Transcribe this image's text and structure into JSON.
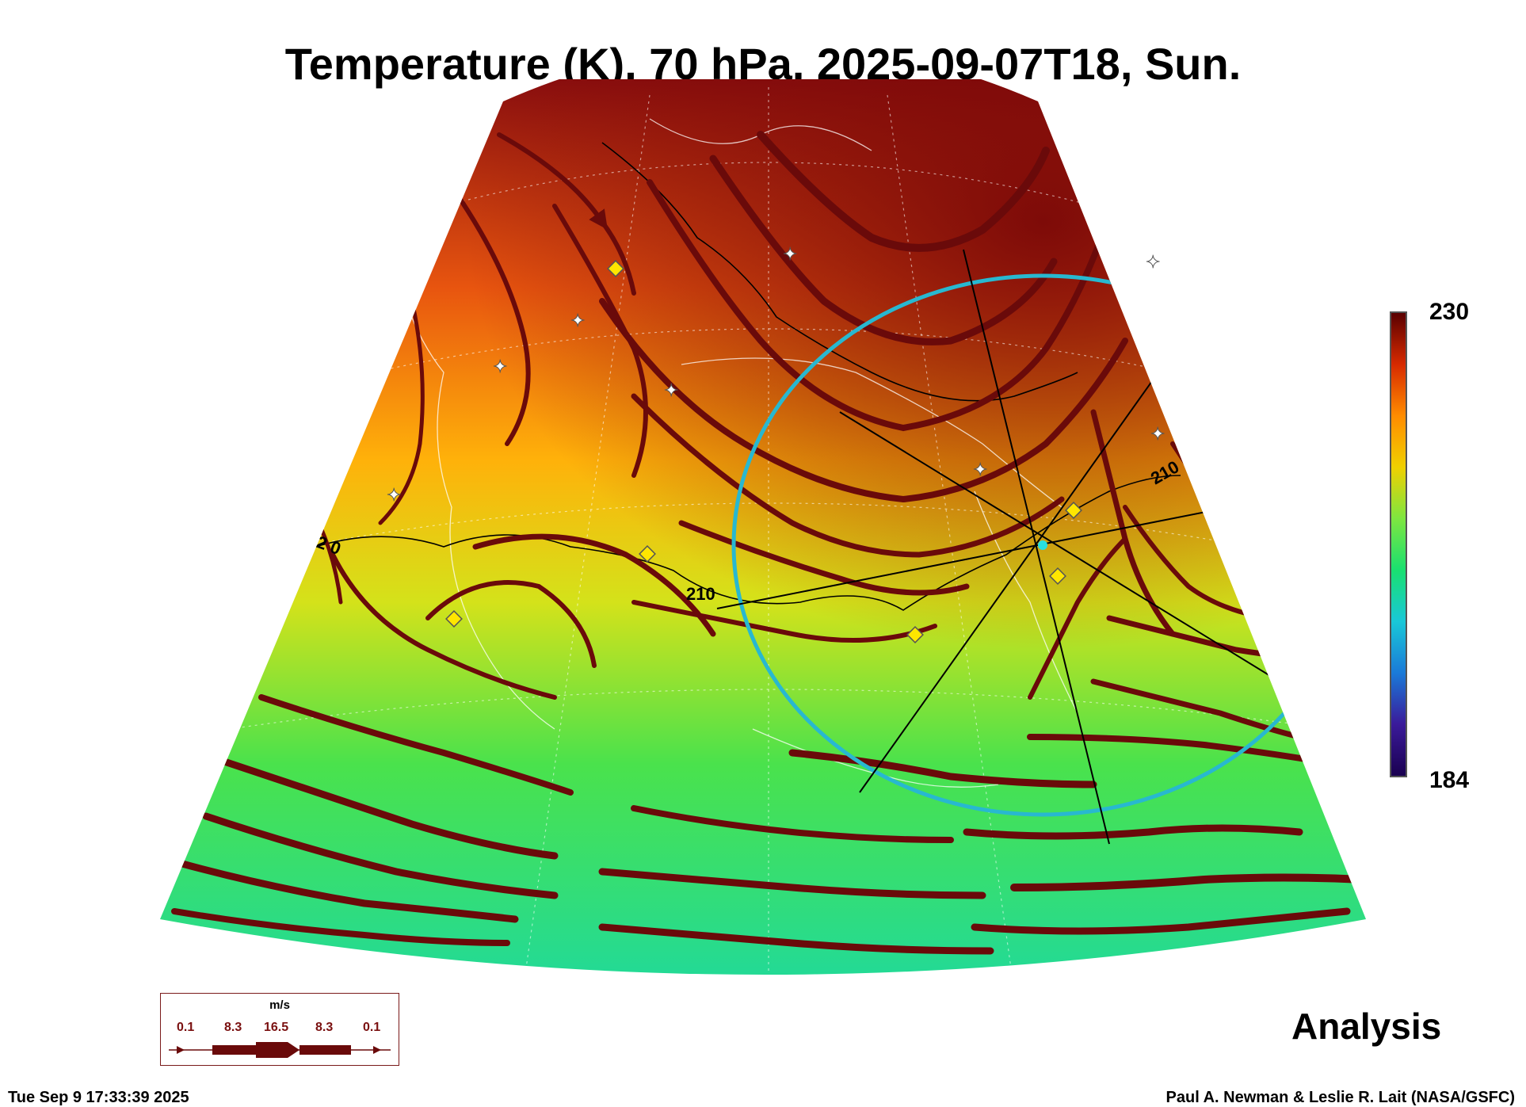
{
  "header": {
    "title": "Temperature (K), 70 hPa, 2025-09-07T18, Sun."
  },
  "colorbar": {
    "max_label": "230",
    "min_label": "184",
    "gradient_colors": [
      "#5a0000",
      "#d72a00",
      "#ff8c00",
      "#f0d000",
      "#7ee640",
      "#19e070",
      "#19c8d8",
      "#1a7ad8",
      "#3a1a9a",
      "#1a0050"
    ]
  },
  "map": {
    "contour_labels": [
      "210",
      "2 0",
      "210"
    ],
    "fill_colors": {
      "top": "#8a0e0e",
      "upper": "#e8550f",
      "middle": "#ffb10a",
      "lower": "#d4e21a",
      "bottom": "#24e07e"
    },
    "streamline_color": "#6a0a0a",
    "range_ring_color": "#28b8d0",
    "marker_colors": {
      "diamond": "#ffe600",
      "star": "#ffffff"
    }
  },
  "legend": {
    "unit": "m/s",
    "values": [
      "0.1",
      "8.3",
      "16.5",
      "8.3",
      "0.1"
    ]
  },
  "footer": {
    "analysis_label": "Analysis",
    "timestamp": "Tue Sep  9 17:33:39 2025",
    "credit": "Paul A. Newman & Leslie R. Lait (NASA/GSFC)"
  }
}
